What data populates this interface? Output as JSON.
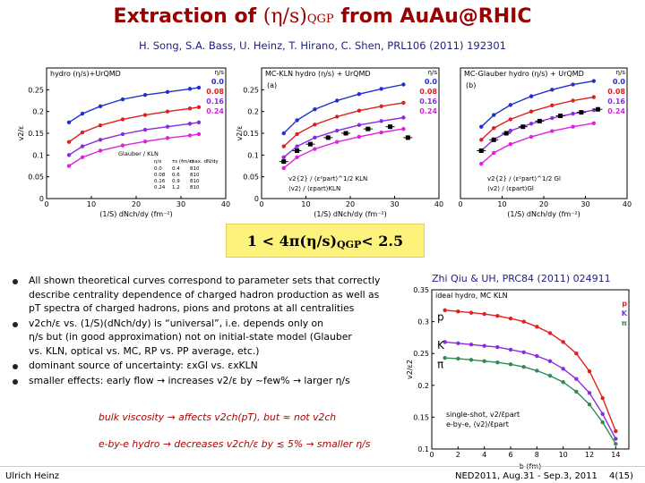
{
  "slide": {
    "title_prefix": "Extraction of ",
    "title_math": "(η/s)",
    "title_sub": "QGP",
    "title_suffix": " from AuAu@RHIC",
    "authors": "H. Song, S.A. Bass, U. Heinz, T. Hirano, C. Shen, PRL106 (2011) 192301",
    "result_text": "1 < 4π(η/s)",
    "result_sub": "QGP",
    "result_tail": " < 2.5",
    "ref2": "Zhi Qiu & UH, PRC84 (2011) 024911"
  },
  "bullets": [
    {
      "lines": [
        "All shown theoretical curves correspond to parameter sets that correctly",
        "describe centrality dependence of charged hadron production as well as",
        "pT spectra of charged hadrons, pions and protons at all centralities"
      ]
    },
    {
      "lines": [
        "v2ch/ε vs. (1/S)(dNch/dy) is “universal”, i.e. depends only on",
        "η/s but (in good approximation) not on initial-state model (Glauber",
        "vs. KLN, optical vs. MC, RP vs. PP average, etc.)"
      ]
    },
    {
      "lines": [
        "dominant source of uncertainty: εxGl vs. εxKLN"
      ]
    },
    {
      "lines": [
        "smaller effects: early flow → increases v2/ε by ~few% → larger η/s"
      ]
    }
  ],
  "sub_lines": [
    "bulk viscosity → affects v2ch(pT), but ≈ not v2ch",
    "e-by-e hydro → decreases v2ch/ε by ≲ 5% → smaller η/s"
  ],
  "footer": {
    "left": "Ulrich Heinz",
    "right": "NED2011, Aug.31 - Sep.3, 2011",
    "page": "4(15)"
  },
  "colors": {
    "title": "#9a0000",
    "authors": "#1f1f80",
    "highlight": "#fdf27c",
    "series": [
      "#1f2fd0",
      "#e02020",
      "#8a2be2",
      "#e020e0",
      "#2e8b57"
    ]
  },
  "chart_data": [
    {
      "type": "line",
      "title": "hydro (η/s)+UrQMD",
      "xlabel": "(1/S) dNch/dy (fm⁻²)",
      "ylabel": "v2/ε",
      "xlim": [
        0,
        40
      ],
      "ylim": [
        0,
        0.3
      ],
      "xticks": [
        "0",
        "10",
        "20",
        "30",
        "40"
      ],
      "yticks": [
        "0",
        "0.05",
        "0.1",
        "0.15",
        "0.2",
        "0.25"
      ],
      "legend_title": "η/s",
      "legend_inset_title": "Glauber / KLN",
      "legend_inset_cols": [
        "η/s",
        "τs (fm/c)",
        "max. dN/dy"
      ],
      "legend_inset_rows": [
        [
          "0.0",
          "0.4",
          "810"
        ],
        [
          "0.08",
          "0.6",
          "810"
        ],
        [
          "0.16",
          "0.9",
          "810"
        ],
        [
          "0.24",
          "1.2",
          "810"
        ]
      ],
      "x": [
        5,
        8,
        12,
        17,
        22,
        27,
        32,
        34
      ],
      "series": [
        {
          "name": "0.0",
          "color": "#1f2fd0",
          "values": [
            0.175,
            0.195,
            0.212,
            0.228,
            0.238,
            0.245,
            0.252,
            0.255
          ]
        },
        {
          "name": "0.08",
          "color": "#e02020",
          "values": [
            0.13,
            0.152,
            0.168,
            0.182,
            0.192,
            0.2,
            0.207,
            0.21
          ]
        },
        {
          "name": "0.16",
          "color": "#8a2be2",
          "values": [
            0.1,
            0.12,
            0.135,
            0.148,
            0.158,
            0.165,
            0.172,
            0.175
          ]
        },
        {
          "name": "0.24",
          "color": "#e020e0",
          "values": [
            0.075,
            0.095,
            0.11,
            0.122,
            0.131,
            0.139,
            0.145,
            0.148
          ]
        }
      ]
    },
    {
      "type": "line",
      "title": "MC-KLN    hydro (η/s) + UrQMD",
      "panel_label": "(a)",
      "xlabel": "(1/S) dNch/dy (fm⁻²)",
      "ylabel": "v2/ε",
      "xlim": [
        0,
        40
      ],
      "ylim": [
        0,
        0.3
      ],
      "xticks": [
        "0",
        "10",
        "20",
        "30",
        "40"
      ],
      "yticks": [
        "0",
        "0.05",
        "0.1",
        "0.15",
        "0.2",
        "0.25"
      ],
      "legend_title": "η/s",
      "data_legend": [
        "v2{2} / ⟨ε²part⟩^1/2 KLN",
        "⟨v2⟩ / ⟨εpart⟩KLN"
      ],
      "x": [
        5,
        8,
        12,
        17,
        22,
        27,
        32
      ],
      "series": [
        {
          "name": "0.0",
          "color": "#1f2fd0",
          "values": [
            0.15,
            0.18,
            0.205,
            0.225,
            0.24,
            0.252,
            0.262
          ]
        },
        {
          "name": "0.08",
          "color": "#e02020",
          "values": [
            0.12,
            0.148,
            0.17,
            0.188,
            0.202,
            0.212,
            0.22
          ]
        },
        {
          "name": "0.16",
          "color": "#8a2be2",
          "values": [
            0.095,
            0.12,
            0.14,
            0.156,
            0.169,
            0.178,
            0.186
          ]
        },
        {
          "name": "0.24",
          "color": "#e020e0",
          "values": [
            0.07,
            0.095,
            0.114,
            0.13,
            0.142,
            0.152,
            0.16
          ]
        }
      ],
      "data_points_x": [
        5,
        8,
        11,
        15,
        19,
        24,
        29,
        33
      ],
      "data_points_y": [
        0.085,
        0.11,
        0.125,
        0.14,
        0.15,
        0.16,
        0.165,
        0.14
      ]
    },
    {
      "type": "line",
      "title": "MC-Glauber    hydro (η/s) + UrQMD",
      "panel_label": "(b)",
      "xlabel": "(1/S) dNch/dy (fm⁻²)",
      "xlim": [
        0,
        40
      ],
      "ylim": [
        0,
        0.3
      ],
      "xticks": [
        "0",
        "10",
        "20",
        "30",
        "40"
      ],
      "legend_title": "η/s",
      "data_legend": [
        "v2{2} / ⟨ε²part⟩^1/2 Gl",
        "⟨v2⟩ / ⟨εpart⟩Gl"
      ],
      "x": [
        5,
        8,
        12,
        17,
        22,
        27,
        32
      ],
      "series": [
        {
          "name": "0.0",
          "color": "#1f2fd0",
          "values": [
            0.165,
            0.192,
            0.215,
            0.235,
            0.25,
            0.262,
            0.27
          ]
        },
        {
          "name": "0.08",
          "color": "#e02020",
          "values": [
            0.135,
            0.162,
            0.182,
            0.2,
            0.214,
            0.225,
            0.233
          ]
        },
        {
          "name": "0.16",
          "color": "#8a2be2",
          "values": [
            0.11,
            0.136,
            0.156,
            0.172,
            0.185,
            0.195,
            0.203
          ]
        },
        {
          "name": "0.24",
          "color": "#e020e0",
          "values": [
            0.08,
            0.105,
            0.125,
            0.142,
            0.155,
            0.165,
            0.173
          ]
        }
      ],
      "data_points_x": [
        5,
        8,
        11,
        15,
        19,
        24,
        29,
        33
      ],
      "data_points_y": [
        0.11,
        0.135,
        0.15,
        0.165,
        0.178,
        0.19,
        0.198,
        0.205
      ]
    },
    {
      "type": "line",
      "title": "ideal hydro, MC KLN",
      "xlabel": "b (fm)",
      "ylabel": "v2/ε2",
      "xlim": [
        0,
        15
      ],
      "ylim": [
        0.1,
        0.35
      ],
      "xticks": [
        "0",
        "2",
        "4",
        "6",
        "8",
        "10",
        "12",
        "14"
      ],
      "yticks": [
        "0.1",
        "0.15",
        "0.2",
        "0.25",
        "0.3",
        "0.35"
      ],
      "species_labels": [
        "p",
        "K",
        "π"
      ],
      "legend": [
        "single-shot, v2/ε̄part",
        "e-by-e, ⟨v2⟩/ε̄part"
      ],
      "x": [
        1,
        2,
        3,
        4,
        5,
        6,
        7,
        8,
        9,
        10,
        11,
        12,
        13,
        14
      ],
      "series": [
        {
          "name": "p",
          "color": "#e02020",
          "values": [
            0.318,
            0.316,
            0.314,
            0.312,
            0.309,
            0.305,
            0.3,
            0.292,
            0.282,
            0.268,
            0.25,
            0.222,
            0.18,
            0.128
          ]
        },
        {
          "name": "K",
          "color": "#8a2be2",
          "values": [
            0.268,
            0.266,
            0.264,
            0.262,
            0.26,
            0.256,
            0.252,
            0.246,
            0.238,
            0.226,
            0.21,
            0.188,
            0.155,
            0.116
          ]
        },
        {
          "name": "π",
          "color": "#2e8b57",
          "values": [
            0.243,
            0.242,
            0.24,
            0.238,
            0.236,
            0.233,
            0.229,
            0.223,
            0.215,
            0.205,
            0.19,
            0.17,
            0.142,
            0.108
          ]
        }
      ]
    }
  ]
}
